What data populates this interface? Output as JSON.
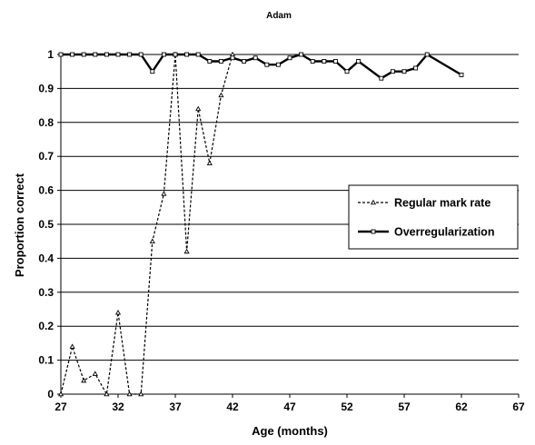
{
  "chart_data": {
    "type": "line",
    "title": "Adam",
    "xlabel": "Age (months)",
    "ylabel": "Proportion correct",
    "xlim": [
      27,
      67
    ],
    "ylim": [
      0,
      1
    ],
    "x_ticks": [
      27,
      32,
      37,
      42,
      47,
      52,
      57,
      62,
      67
    ],
    "y_ticks": [
      0,
      0.1,
      0.2,
      0.3,
      0.4,
      0.5,
      0.6,
      0.7,
      0.8,
      0.9,
      1
    ],
    "y_tick_labels": [
      "0",
      "0.1",
      "0.2",
      "0.3",
      "0.4",
      "0.5",
      "0.6",
      "0.7",
      "0.8",
      "0.9",
      "1"
    ],
    "grid": "horizontal",
    "legend_position": "right",
    "series": [
      {
        "name": "Regular mark rate",
        "style": "dashed",
        "marker": "triangle",
        "color": "#000000",
        "points": [
          [
            27,
            0
          ],
          [
            28,
            0.14
          ],
          [
            29,
            0.04
          ],
          [
            30,
            0.06
          ],
          [
            31,
            0
          ],
          [
            32,
            0.24
          ],
          [
            33,
            0
          ],
          [
            34,
            0
          ],
          [
            35,
            0.45
          ],
          [
            36,
            0.59
          ],
          [
            37,
            1.0
          ],
          [
            38,
            0.42
          ],
          [
            39,
            0.84
          ],
          [
            40,
            0.68
          ],
          [
            41,
            0.88
          ],
          [
            42,
            1.0
          ]
        ]
      },
      {
        "name": "Overregularization",
        "style": "solid",
        "marker": "square",
        "color": "#000000",
        "points": [
          [
            27,
            1.0
          ],
          [
            28,
            1.0
          ],
          [
            29,
            1.0
          ],
          [
            30,
            1.0
          ],
          [
            31,
            1.0
          ],
          [
            32,
            1.0
          ],
          [
            33,
            1.0
          ],
          [
            34,
            1.0
          ],
          [
            35,
            0.95
          ],
          [
            36,
            1.0
          ],
          [
            37,
            1.0
          ],
          [
            38,
            1.0
          ],
          [
            39,
            1.0
          ],
          [
            40,
            0.98
          ],
          [
            41,
            0.98
          ],
          [
            42,
            0.99
          ],
          [
            43,
            0.98
          ],
          [
            44,
            0.99
          ],
          [
            45,
            0.97
          ],
          [
            46,
            0.97
          ],
          [
            47,
            0.99
          ],
          [
            48,
            1.0
          ],
          [
            49,
            0.98
          ],
          [
            50,
            0.98
          ],
          [
            51,
            0.98
          ],
          [
            52,
            0.95
          ],
          [
            53,
            0.98
          ],
          [
            55,
            0.93
          ],
          [
            56,
            0.95
          ],
          [
            57,
            0.95
          ],
          [
            58,
            0.96
          ],
          [
            59,
            1.0
          ],
          [
            62,
            0.94
          ]
        ]
      }
    ]
  }
}
